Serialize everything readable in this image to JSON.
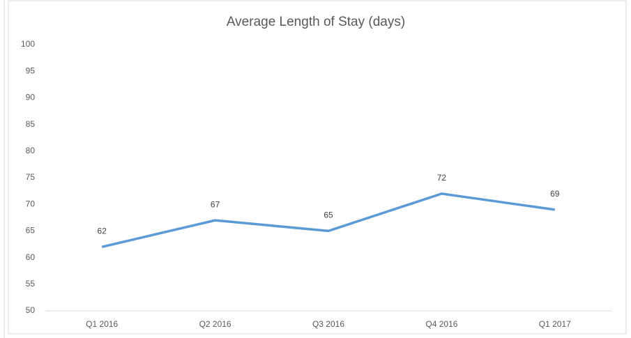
{
  "chart_data": {
    "type": "line",
    "title": "Average Length of Stay (days)",
    "categories": [
      "Q1 2016",
      "Q2 2016",
      "Q3 2016",
      "Q4 2016",
      "Q1 2017"
    ],
    "series": [
      {
        "name": "Average Length of Stay",
        "color": "#5b9bd5",
        "values": [
          62,
          67,
          65,
          72,
          69
        ]
      }
    ],
    "ylim": [
      50,
      100
    ],
    "yticks": [
      50,
      55,
      60,
      65,
      70,
      75,
      80,
      85,
      90,
      95,
      100
    ],
    "grid": false
  }
}
